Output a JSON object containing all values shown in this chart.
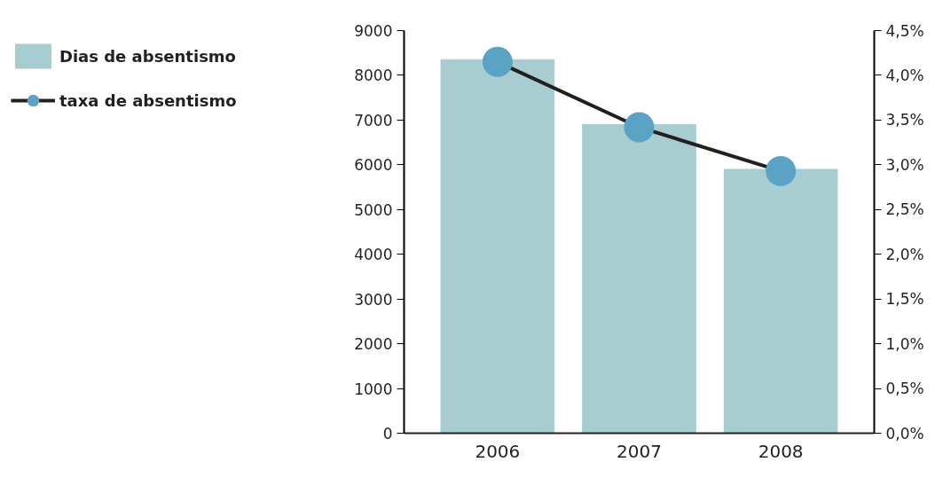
{
  "chart_data": {
    "type": "bar",
    "categories": [
      "2006",
      "2007",
      "2008"
    ],
    "series": [
      {
        "name": "Dias de absentismo",
        "color": "#a8cdd1",
        "values": [
          8350,
          6900,
          5900
        ]
      },
      {
        "name": "taxa de absentismo",
        "type": "line",
        "axis": "y2",
        "color": "#231f20",
        "colors": [
          "#5ba3c4",
          "#5ba3c4",
          "#5ba3c4"
        ],
        "values": [
          4.15,
          3.42,
          2.93
        ]
      }
    ],
    "ylim": [
      0,
      9000
    ],
    "yticks": [
      0,
      1000,
      2000,
      3000,
      4000,
      5000,
      6000,
      7000,
      8000,
      9000
    ],
    "y2lim": [
      0,
      4.5
    ],
    "y2ticks": [
      {
        "value": 0,
        "label": "0,0%"
      },
      {
        "value": 0.5,
        "label": "0,5%"
      },
      {
        "value": 1,
        "label": "1,0%"
      },
      {
        "value": 1.5,
        "label": "1,5%"
      },
      {
        "value": 2,
        "label": "2,0%"
      },
      {
        "value": 2.5,
        "label": "2,5%"
      },
      {
        "value": 3,
        "label": "3,0%"
      },
      {
        "value": 3.5,
        "label": "3,5%"
      },
      {
        "value": 4,
        "label": "4,0%"
      },
      {
        "value": 4.5,
        "label": "4,5%"
      }
    ],
    "legend": "top left",
    "grid": false,
    "marker": "circle"
  }
}
